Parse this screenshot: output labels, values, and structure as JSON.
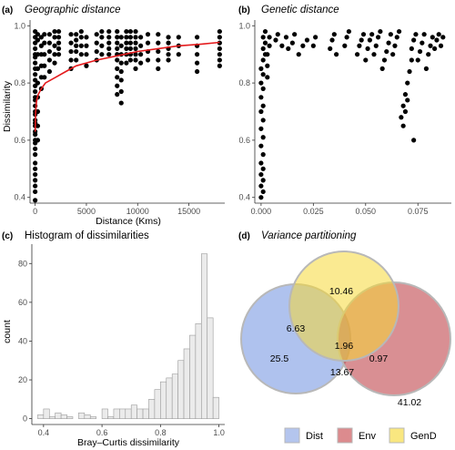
{
  "panels": {
    "a": {
      "tag": "(a)",
      "title": "Geographic distance"
    },
    "b": {
      "tag": "(b)",
      "title": "Genetic distance"
    },
    "c": {
      "tag": "(c)",
      "title": "Histogram of dissimilarities"
    },
    "d": {
      "tag": "(d)",
      "title": "Variance partitioning"
    }
  },
  "colors": {
    "fit": "#e41a1c",
    "points": "#000000",
    "bars": "#ebebeb",
    "dist": "#6d8fe0",
    "env": "#c0454b",
    "gend": "#f6d936"
  },
  "chart_data": [
    {
      "type": "scatter",
      "id": "a",
      "title": "Geographic distance",
      "xlabel": "Distance (Kms)",
      "ylabel": "Dissimilarity",
      "xlim": [
        -500,
        18500
      ],
      "ylim": [
        0.38,
        1.02
      ],
      "xticks": [
        0,
        5000,
        10000,
        15000
      ],
      "xtick_labels": [
        "0",
        "5000",
        "10000",
        "15000"
      ],
      "yticks": [
        0.4,
        0.6,
        0.8,
        1.0
      ],
      "ytick_labels": [
        "0.4",
        "0.6",
        "0.8",
        "1.0"
      ],
      "columns": [
        {
          "x": 0,
          "y": [
            0.39,
            0.42,
            0.44,
            0.46,
            0.48,
            0.5,
            0.52,
            0.55,
            0.57,
            0.59,
            0.6,
            0.62,
            0.63,
            0.65,
            0.66,
            0.67,
            0.69,
            0.7,
            0.72,
            0.74,
            0.75,
            0.77,
            0.79,
            0.81,
            0.83,
            0.85,
            0.87,
            0.89,
            0.9,
            0.92,
            0.94,
            0.96,
            0.98
          ]
        },
        {
          "x": 250,
          "y": [
            0.6,
            0.65,
            0.7,
            0.75,
            0.8,
            0.85,
            0.9,
            0.95,
            0.97
          ]
        },
        {
          "x": 600,
          "y": [
            0.78,
            0.82,
            0.86,
            0.9,
            0.93,
            0.96
          ]
        },
        {
          "x": 900,
          "y": [
            0.82,
            0.86,
            0.9,
            0.94,
            0.97
          ]
        },
        {
          "x": 1400,
          "y": [
            0.84,
            0.88,
            0.91,
            0.94,
            0.97
          ]
        },
        {
          "x": 1900,
          "y": [
            0.87,
            0.9,
            0.93,
            0.96,
            0.98
          ]
        },
        {
          "x": 2300,
          "y": [
            0.9,
            0.92,
            0.94,
            0.96,
            0.98
          ]
        },
        {
          "x": 3500,
          "y": [
            0.85,
            0.88,
            0.91,
            0.94,
            0.97
          ]
        },
        {
          "x": 4000,
          "y": [
            0.88,
            0.91,
            0.93,
            0.95,
            0.97
          ]
        },
        {
          "x": 4500,
          "y": [
            0.9,
            0.93,
            0.96,
            0.98
          ]
        },
        {
          "x": 5000,
          "y": [
            0.86,
            0.9,
            0.93,
            0.96
          ]
        },
        {
          "x": 6000,
          "y": [
            0.88,
            0.91,
            0.94,
            0.97
          ]
        },
        {
          "x": 6500,
          "y": [
            0.9,
            0.93,
            0.96,
            0.98
          ]
        },
        {
          "x": 7200,
          "y": [
            0.9,
            0.92,
            0.94,
            0.96,
            0.98
          ]
        },
        {
          "x": 8000,
          "y": [
            0.76,
            0.79,
            0.82,
            0.85,
            0.88,
            0.9,
            0.92,
            0.94,
            0.96,
            0.98
          ]
        },
        {
          "x": 8400,
          "y": [
            0.73,
            0.77,
            0.81,
            0.84,
            0.87,
            0.9,
            0.93,
            0.96
          ]
        },
        {
          "x": 8900,
          "y": [
            0.87,
            0.9,
            0.92,
            0.94,
            0.96,
            0.98
          ]
        },
        {
          "x": 9300,
          "y": [
            0.88,
            0.9,
            0.92,
            0.94,
            0.96,
            0.98
          ]
        },
        {
          "x": 9800,
          "y": [
            0.85,
            0.88,
            0.9,
            0.92,
            0.94,
            0.96,
            0.98
          ]
        },
        {
          "x": 10300,
          "y": [
            0.87,
            0.9,
            0.93,
            0.96
          ]
        },
        {
          "x": 11000,
          "y": [
            0.88,
            0.91,
            0.94,
            0.97
          ]
        },
        {
          "x": 12000,
          "y": [
            0.85,
            0.88,
            0.91,
            0.94,
            0.97
          ]
        },
        {
          "x": 13000,
          "y": [
            0.88,
            0.9,
            0.92,
            0.94,
            0.96
          ]
        },
        {
          "x": 14000,
          "y": [
            0.9,
            0.93,
            0.96
          ]
        },
        {
          "x": 15800,
          "y": [
            0.84,
            0.87,
            0.9,
            0.93,
            0.96
          ]
        },
        {
          "x": 18000,
          "y": [
            0.86,
            0.88,
            0.9,
            0.92,
            0.94,
            0.96,
            0.98
          ]
        }
      ],
      "fit": {
        "x": [
          10,
          50,
          150,
          300,
          600,
          1000,
          2000,
          3000,
          4000,
          5000,
          6000,
          8000,
          10000,
          12000,
          14000,
          16000,
          18000
        ],
        "y": [
          0.63,
          0.7,
          0.74,
          0.76,
          0.78,
          0.8,
          0.82,
          0.84,
          0.86,
          0.87,
          0.88,
          0.895,
          0.91,
          0.92,
          0.93,
          0.935,
          0.942
        ]
      }
    },
    {
      "type": "scatter",
      "id": "b",
      "title": "Genetic distance",
      "xlabel": "",
      "ylabel": "",
      "xlim": [
        -0.003,
        0.091
      ],
      "ylim": [
        0.38,
        1.02
      ],
      "xticks": [
        0,
        0.025,
        0.05,
        0.075
      ],
      "xtick_labels": [
        "0.000",
        "0.025",
        "0.050",
        "0.075"
      ],
      "yticks": [
        0.4,
        0.6,
        0.8,
        1.0
      ],
      "ytick_labels": [
        "0.4",
        "0.6",
        "0.8",
        "1.0"
      ],
      "points": [
        [
          0,
          0.4
        ],
        [
          0.001,
          0.42
        ],
        [
          0,
          0.44
        ],
        [
          0.001,
          0.46
        ],
        [
          0,
          0.48
        ],
        [
          0.001,
          0.5
        ],
        [
          0,
          0.52
        ],
        [
          0.001,
          0.55
        ],
        [
          0,
          0.58
        ],
        [
          0.001,
          0.61
        ],
        [
          0,
          0.64
        ],
        [
          0.001,
          0.67
        ],
        [
          0,
          0.7
        ],
        [
          0.001,
          0.72
        ],
        [
          0,
          0.75
        ],
        [
          0.001,
          0.78
        ],
        [
          0,
          0.8
        ],
        [
          0.001,
          0.83
        ],
        [
          0,
          0.85
        ],
        [
          0.001,
          0.88
        ],
        [
          0.002,
          0.9
        ],
        [
          0.001,
          0.92
        ],
        [
          0.002,
          0.94
        ],
        [
          0.001,
          0.96
        ],
        [
          0.002,
          0.98
        ],
        [
          0.003,
          0.82
        ],
        [
          0.003,
          0.86
        ],
        [
          0.003,
          0.9
        ],
        [
          0.004,
          0.93
        ],
        [
          0.004,
          0.96
        ],
        [
          0.007,
          0.95
        ],
        [
          0.008,
          0.97
        ],
        [
          0.01,
          0.93
        ],
        [
          0.012,
          0.96
        ],
        [
          0.013,
          0.92
        ],
        [
          0.015,
          0.94
        ],
        [
          0.016,
          0.97
        ],
        [
          0.018,
          0.9
        ],
        [
          0.02,
          0.93
        ],
        [
          0.022,
          0.95
        ],
        [
          0.025,
          0.93
        ],
        [
          0.026,
          0.96
        ],
        [
          0.033,
          0.92
        ],
        [
          0.034,
          0.95
        ],
        [
          0.035,
          0.97
        ],
        [
          0.036,
          0.9
        ],
        [
          0.04,
          0.93
        ],
        [
          0.041,
          0.96
        ],
        [
          0.042,
          0.98
        ],
        [
          0.046,
          0.9
        ],
        [
          0.047,
          0.93
        ],
        [
          0.048,
          0.95
        ],
        [
          0.049,
          0.97
        ],
        [
          0.05,
          0.88
        ],
        [
          0.051,
          0.92
        ],
        [
          0.052,
          0.95
        ],
        [
          0.053,
          0.97
        ],
        [
          0.054,
          0.9
        ],
        [
          0.055,
          0.93
        ],
        [
          0.056,
          0.96
        ],
        [
          0.057,
          0.98
        ],
        [
          0.058,
          0.85
        ],
        [
          0.059,
          0.88
        ],
        [
          0.06,
          0.91
        ],
        [
          0.061,
          0.94
        ],
        [
          0.062,
          0.97
        ],
        [
          0.063,
          0.9
        ],
        [
          0.064,
          0.93
        ],
        [
          0.065,
          0.96
        ],
        [
          0.066,
          0.98
        ],
        [
          0.067,
          0.68
        ],
        [
          0.068,
          0.72
        ],
        [
          0.069,
          0.76
        ],
        [
          0.068,
          0.65
        ],
        [
          0.069,
          0.7
        ],
        [
          0.07,
          0.74
        ],
        [
          0.07,
          0.8
        ],
        [
          0.071,
          0.84
        ],
        [
          0.072,
          0.88
        ],
        [
          0.072,
          0.92
        ],
        [
          0.073,
          0.95
        ],
        [
          0.074,
          0.97
        ],
        [
          0.073,
          0.6
        ],
        [
          0.075,
          0.88
        ],
        [
          0.076,
          0.91
        ],
        [
          0.077,
          0.94
        ],
        [
          0.078,
          0.97
        ],
        [
          0.079,
          0.85
        ],
        [
          0.08,
          0.9
        ],
        [
          0.081,
          0.93
        ],
        [
          0.082,
          0.96
        ],
        [
          0.083,
          0.92
        ],
        [
          0.084,
          0.95
        ],
        [
          0.085,
          0.97
        ],
        [
          0.086,
          0.93
        ],
        [
          0.087,
          0.96
        ]
      ]
    },
    {
      "type": "bar",
      "id": "c",
      "title": "Histogram of dissimilarities",
      "xlabel": "Bray–Curtis dissimilarity",
      "ylabel": "count",
      "xlim": [
        0.36,
        1.02
      ],
      "ylim": [
        -3,
        90
      ],
      "xticks": [
        0.4,
        0.6,
        0.8,
        1.0
      ],
      "xtick_labels": [
        "0.4",
        "0.6",
        "0.8",
        "1.0"
      ],
      "yticks": [
        0,
        20,
        40,
        60,
        80
      ],
      "ytick_labels": [
        "0",
        "20",
        "40",
        "60",
        "80"
      ],
      "bin_width": 0.02,
      "bin_starts": [
        0.38,
        0.4,
        0.42,
        0.44,
        0.46,
        0.48,
        0.5,
        0.52,
        0.54,
        0.56,
        0.58,
        0.6,
        0.62,
        0.64,
        0.66,
        0.68,
        0.7,
        0.72,
        0.74,
        0.76,
        0.78,
        0.8,
        0.82,
        0.84,
        0.86,
        0.88,
        0.9,
        0.92,
        0.94,
        0.96,
        0.98
      ],
      "values": [
        2,
        5,
        1,
        3,
        2,
        1,
        0,
        3,
        2,
        1,
        0,
        5,
        1,
        5,
        5,
        5,
        7,
        5,
        5,
        10,
        15,
        19,
        21,
        23,
        30,
        36,
        43,
        49,
        85,
        52,
        11
      ]
    }
  ],
  "venn": {
    "values": {
      "dist_only": "25.5",
      "gend_only": "10.46",
      "env_only": "0.97",
      "dist_gend": "6.63",
      "dist_env": "13.67",
      "all": "1.96",
      "residual": "41.02"
    },
    "legend": [
      {
        "key": "dist",
        "label": "Dist"
      },
      {
        "key": "env",
        "label": "Env"
      },
      {
        "key": "gend",
        "label": "GenD"
      }
    ]
  }
}
